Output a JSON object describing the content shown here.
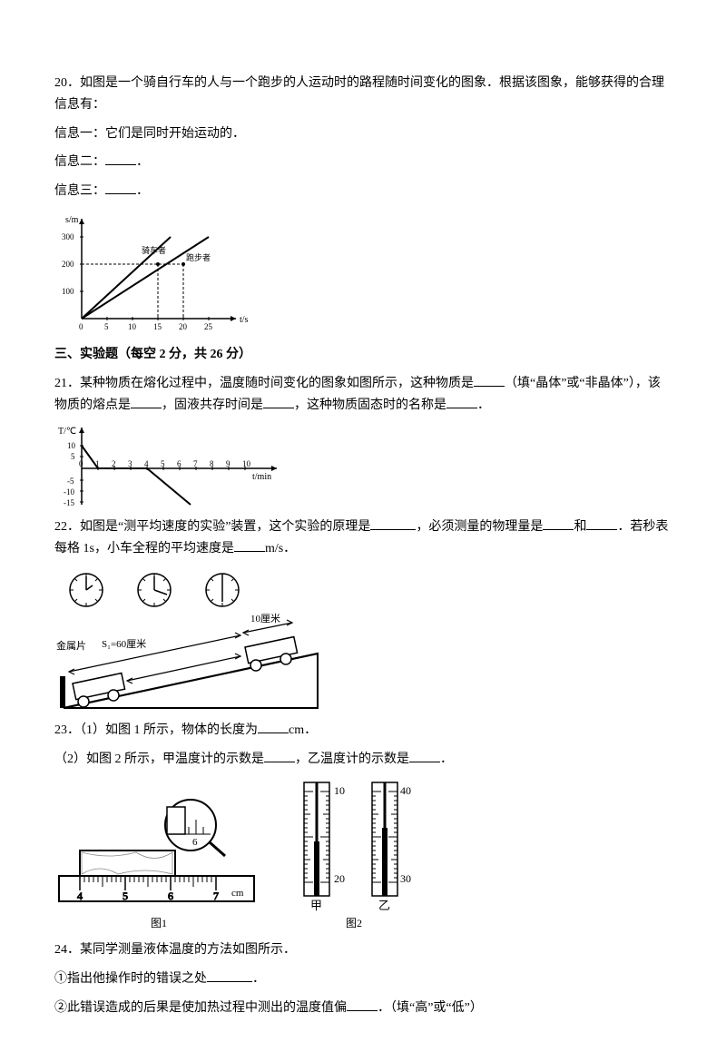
{
  "q20": {
    "stem1": "20．如图是一个骑自行车的人与一个跑步的人运动时的路程随时间变化的图象．根据该图象，能够获得的合理信息有：",
    "info1_label": "信息一：它们是同时开始运动的．",
    "info2_label": "信息二：",
    "info3_label": "信息三：",
    "period": "．",
    "graph": {
      "y_label": "s/m",
      "y_ticks": [
        100,
        200,
        300
      ],
      "x_ticks": [
        5,
        10,
        15,
        20,
        25
      ],
      "x_label": "t/s",
      "series": [
        {
          "label": "骑车者",
          "x_end": 15,
          "y_end": 200
        },
        {
          "label": "跑步者",
          "x_end": 20,
          "y_end": 200
        }
      ],
      "dash_y": 200,
      "dash_x1": 15,
      "dash_x2": 20
    }
  },
  "section3": {
    "heading": "三、实验题（每空 2 分，共 26 分）"
  },
  "q21": {
    "stem_a": "21．某种物质在熔化过程中，温度随时间变化的图象如图所示，这种物质是",
    "stem_b": "（填“晶体”或“非晶体”），该物质的熔点是",
    "stem_c": "，固液共存时间是",
    "stem_d": "，这种物质固态时的名称是",
    "period": "．",
    "graph": {
      "y_label": "T/℃",
      "y_ticks_pos": [
        5,
        10
      ],
      "y_ticks_neg": [
        -5,
        -10,
        -15
      ],
      "x_ticks": [
        1,
        2,
        3,
        4,
        5,
        6,
        7,
        8,
        9,
        10
      ],
      "x_label": "t/min",
      "plateau_t_start": 1,
      "plateau_t_end": 4,
      "plateau_y": 0,
      "start_point": {
        "t": 0,
        "y": 10
      },
      "end_point": {
        "t": 6.5,
        "y": -15
      }
    }
  },
  "q22": {
    "stem_a": "22．如图是“测平均速度的实验”装置，这个实验的原理是",
    "stem_b": "，必须测量的物理量是",
    "stem_c": "和",
    "stem_d": "．若秒表每格 1s，小车全程的平均速度是",
    "stem_e": "m/s．",
    "fig": {
      "metal_label": "金属片",
      "s1_label": "S₁=60厘米",
      "s2_label": "10厘米"
    }
  },
  "q23": {
    "line1_a": "23．（1）如图 1 所示，物体的长度为",
    "line1_b": "cm．",
    "line2_a": "（2）如图 2 所示，甲温度计的示数是",
    "line2_b": "，乙温度计的示数是",
    "period": "．",
    "ruler": {
      "marks": [
        4,
        5,
        6,
        7
      ],
      "unit": "cm",
      "caption": "图1"
    },
    "thermo": {
      "a_top": "10",
      "a_bot": "20",
      "a_label": "甲",
      "b_top": "40",
      "b_bot": "30",
      "b_label": "乙",
      "caption": "图2"
    }
  },
  "q24": {
    "stem": "24．某同学测量液体温度的方法如图所示．",
    "l1_a": "①指出他操作时的错误之处",
    "period": "．",
    "l2_a": "②此错误造成的后果是使加热过程中测出的温度值偏",
    "l2_b": "．（填“高”或“低”）"
  }
}
